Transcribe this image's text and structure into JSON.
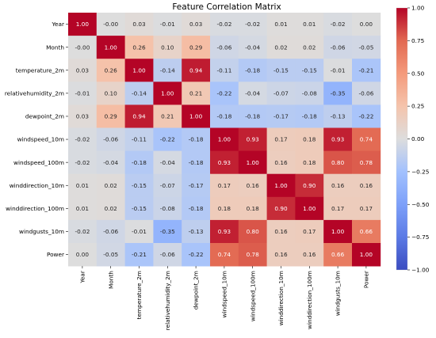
{
  "chart_data": {
    "type": "heatmap",
    "title": "Feature Correlation Matrix",
    "labels": [
      "Year",
      "Month",
      "temperature_2m",
      "relativehumidity_2m",
      "dewpoint_2m",
      "windspeed_10m",
      "windspeed_100m",
      "winddirection_10m",
      "winddirection_100m",
      "windgusts_10m",
      "Power"
    ],
    "matrix": [
      [
        1.0,
        -0.0,
        0.03,
        -0.01,
        0.03,
        -0.02,
        -0.02,
        0.01,
        0.01,
        -0.02,
        0.0
      ],
      [
        -0.0,
        1.0,
        0.26,
        0.1,
        0.29,
        -0.06,
        -0.04,
        0.02,
        0.02,
        -0.06,
        -0.05
      ],
      [
        0.03,
        0.26,
        1.0,
        -0.14,
        0.94,
        -0.11,
        -0.18,
        -0.15,
        -0.15,
        -0.01,
        -0.21
      ],
      [
        -0.01,
        0.1,
        -0.14,
        1.0,
        0.21,
        -0.22,
        -0.04,
        -0.07,
        -0.08,
        -0.35,
        -0.06
      ],
      [
        0.03,
        0.29,
        0.94,
        0.21,
        1.0,
        -0.18,
        -0.18,
        -0.17,
        -0.18,
        -0.13,
        -0.22
      ],
      [
        -0.02,
        -0.06,
        -0.11,
        -0.22,
        -0.18,
        1.0,
        0.93,
        0.17,
        0.18,
        0.93,
        0.74
      ],
      [
        -0.02,
        -0.04,
        -0.18,
        -0.04,
        -0.18,
        0.93,
        1.0,
        0.16,
        0.18,
        0.8,
        0.78
      ],
      [
        0.01,
        0.02,
        -0.15,
        -0.07,
        -0.17,
        0.17,
        0.16,
        1.0,
        0.9,
        0.16,
        0.16
      ],
      [
        0.01,
        0.02,
        -0.15,
        -0.08,
        -0.18,
        0.18,
        0.18,
        0.9,
        1.0,
        0.17,
        0.17
      ],
      [
        -0.02,
        -0.06,
        -0.01,
        -0.35,
        -0.13,
        0.93,
        0.8,
        0.16,
        0.17,
        1.0,
        0.66
      ],
      [
        0.0,
        -0.05,
        -0.21,
        -0.06,
        -0.22,
        0.74,
        0.78,
        0.16,
        0.16,
        0.66,
        1.0
      ]
    ],
    "value_range": [
      -1.0,
      1.0
    ],
    "colormap": "coolwarm",
    "annotation_format": "2 decimals",
    "colorbar": {
      "ticks": [
        1.0,
        0.75,
        0.5,
        0.25,
        0.0,
        -0.25,
        -0.5,
        -0.75,
        -1.0
      ],
      "tick_labels": [
        "1.00",
        "0.75",
        "0.50",
        "0.25",
        "0.00",
        "−0.25",
        "−0.50",
        "−0.75",
        "−1.00"
      ],
      "placement": "right"
    }
  }
}
